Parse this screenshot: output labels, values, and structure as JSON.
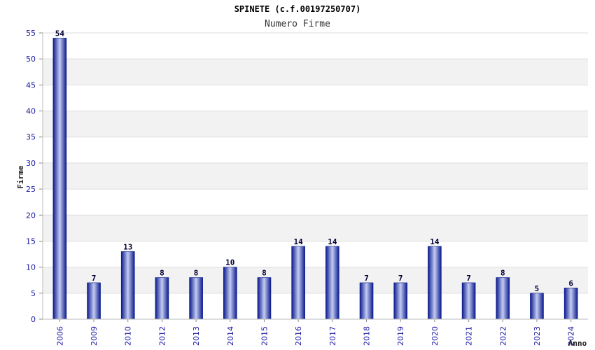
{
  "chart_data": {
    "type": "bar",
    "title": "SPINETE (c.f.00197250707)",
    "subtitle": "Numero Firme",
    "xlabel": "Anno",
    "ylabel": "Firme",
    "categories": [
      "2006",
      "2009",
      "2010",
      "2012",
      "2013",
      "2014",
      "2015",
      "2016",
      "2017",
      "2018",
      "2019",
      "2020",
      "2021",
      "2022",
      "2023",
      "2024"
    ],
    "values": [
      54,
      7,
      13,
      8,
      8,
      10,
      8,
      14,
      14,
      7,
      7,
      14,
      7,
      8,
      5,
      6
    ],
    "ylim": [
      0,
      55
    ],
    "yticks": [
      0,
      5,
      10,
      15,
      20,
      25,
      30,
      35,
      40,
      45,
      50,
      55
    ],
    "grid": true,
    "data_labels": true,
    "colors": {
      "bar_dark": "#0a1a8c",
      "bar_light": "#c4ccf2",
      "band": "#f2f2f2",
      "grid": "#dddddd",
      "tick_text": "#1a1aa6"
    }
  }
}
